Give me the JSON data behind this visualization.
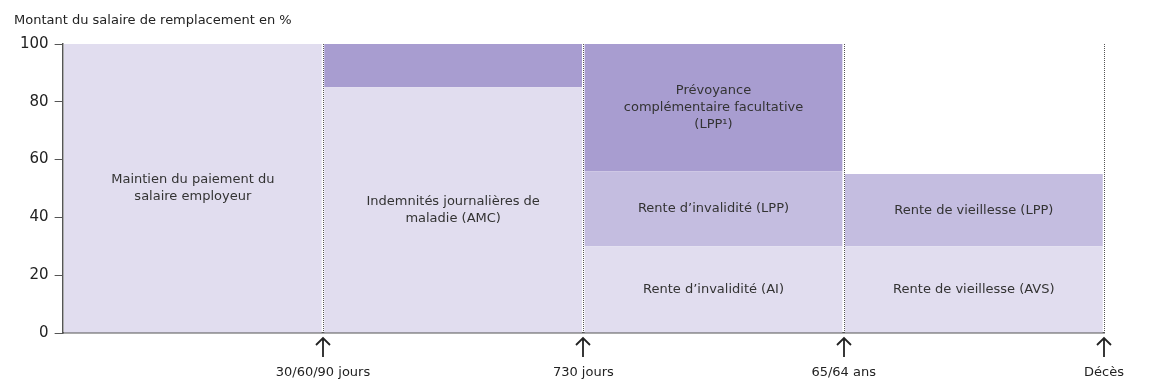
{
  "chart_data": {
    "type": "bar",
    "ylabel": "Montant du salaire de remplacement en %",
    "stacked": true,
    "categories": [
      null,
      null,
      null,
      null
    ],
    "ylim": [
      0,
      100
    ],
    "yticks": [
      0,
      20,
      40,
      60,
      80,
      100
    ],
    "tick_labels": "y",
    "series": [
      {
        "name": "Maintien du paiement du salaire employeur",
        "color": "#e1ddef",
        "values": [
          100,
          null,
          null,
          null
        ]
      },
      {
        "name": "Indemnités journalières de maladie (AMC)",
        "color": "#e1ddef",
        "values": [
          null,
          85,
          null,
          null
        ]
      },
      {
        "name": "Rente d’invalidité (AI)",
        "color": "#e1ddef",
        "values": [
          null,
          null,
          30,
          null
        ]
      },
      {
        "name": "Rente de vieillesse (AVS)",
        "color": "#e1ddef",
        "values": [
          null,
          null,
          null,
          30
        ]
      },
      {
        "name": "Rente d’invalidité (LPP)",
        "color": "#c4bde0",
        "values": [
          null,
          null,
          26,
          null
        ]
      },
      {
        "name": "Rente de vieillesse (LPP)",
        "color": "#c4bde0",
        "values": [
          null,
          null,
          null,
          25
        ]
      },
      {
        "name": "Prévoyance complémentaire facultative (LPP¹)",
        "color": "#a89dd0",
        "values": [
          null,
          15,
          44,
          null
        ]
      }
    ],
    "annotations": [
      "30/60/90 jours",
      "730 jours",
      "65/64 ans",
      "Décès"
    ],
    "grid": false,
    "legend": false
  }
}
